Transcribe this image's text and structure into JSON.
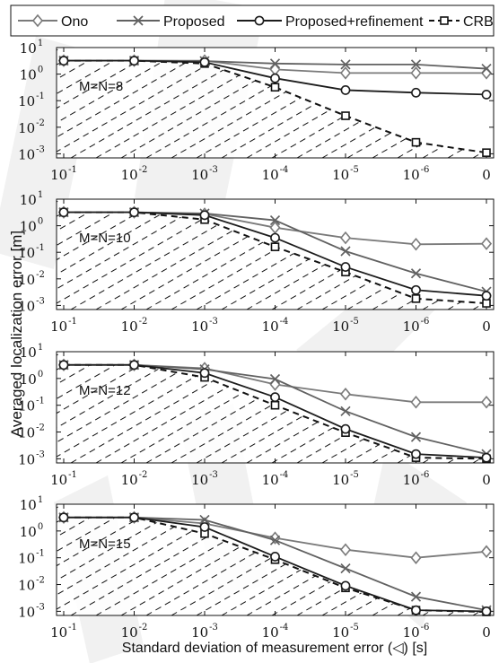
{
  "legend": {
    "position": "top",
    "entries": [
      {
        "series": "ono",
        "label": "Ono"
      },
      {
        "series": "proposed",
        "label": "Proposed"
      },
      {
        "series": "refine",
        "label": "Proposed+refinement"
      },
      {
        "series": "crb",
        "label": "CRB"
      }
    ]
  },
  "figure": {
    "ylabel": "Averaged localization error [m]",
    "xlabel": "Standard deviation of measurement error (◁) [s]"
  },
  "colors": {
    "ono": "#7a7a7a",
    "proposed": "#616161",
    "refine": "#1c1c1c",
    "crb": "#111111",
    "watermark": "#e6e6e6",
    "hatch": "#111111"
  },
  "chart_data": [
    {
      "type": "line",
      "annotation": "M=N=8",
      "yscale": "log",
      "ylim": [
        0.0007,
        10
      ],
      "grid": false,
      "categories": [
        "10^-1",
        "10^-2",
        "10^-3",
        "10^-4",
        "10^-5",
        "10^-6",
        "0"
      ],
      "series": [
        {
          "name": "Ono",
          "marker": "diamond",
          "values": [
            3.2,
            3.2,
            3.2,
            1.5,
            1.1,
            1.1,
            1.1
          ]
        },
        {
          "name": "Proposed",
          "marker": "x",
          "values": [
            3.2,
            3.2,
            3.1,
            2.5,
            2.3,
            2.3,
            1.6
          ]
        },
        {
          "name": "Proposed+refinement",
          "marker": "circle",
          "values": [
            3.2,
            3.2,
            2.8,
            0.7,
            0.25,
            0.2,
            0.17
          ]
        },
        {
          "name": "CRB",
          "marker": "square",
          "dashed": true,
          "values": [
            3.2,
            3.2,
            2.5,
            0.32,
            0.027,
            0.0027,
            0.0011
          ]
        }
      ]
    },
    {
      "type": "line",
      "annotation": "M=N=10",
      "yscale": "log",
      "ylim": [
        0.0007,
        10
      ],
      "grid": false,
      "categories": [
        "10^-1",
        "10^-2",
        "10^-3",
        "10^-4",
        "10^-5",
        "10^-6",
        "0"
      ],
      "series": [
        {
          "name": "Ono",
          "marker": "diamond",
          "values": [
            3.2,
            3.2,
            2.8,
            0.85,
            0.35,
            0.2,
            0.21
          ]
        },
        {
          "name": "Proposed",
          "marker": "x",
          "values": [
            3.2,
            3.2,
            2.9,
            1.6,
            0.11,
            0.016,
            0.0033
          ]
        },
        {
          "name": "Proposed+refinement",
          "marker": "circle",
          "values": [
            3.2,
            3.2,
            2.5,
            0.35,
            0.028,
            0.0038,
            0.0023
          ]
        },
        {
          "name": "CRB",
          "marker": "square",
          "dashed": true,
          "values": [
            3.2,
            3.2,
            1.7,
            0.16,
            0.018,
            0.0018,
            0.0012
          ]
        }
      ]
    },
    {
      "type": "line",
      "annotation": "M=N=12",
      "yscale": "log",
      "ylim": [
        0.0007,
        10
      ],
      "grid": false,
      "categories": [
        "10^-1",
        "10^-2",
        "10^-3",
        "10^-4",
        "10^-5",
        "10^-6",
        "0"
      ],
      "series": [
        {
          "name": "Ono",
          "marker": "diamond",
          "values": [
            3.2,
            3.2,
            2.4,
            0.6,
            0.26,
            0.13,
            0.13
          ]
        },
        {
          "name": "Proposed",
          "marker": "x",
          "values": [
            3.2,
            3.2,
            2.2,
            0.95,
            0.06,
            0.0065,
            0.0015
          ]
        },
        {
          "name": "Proposed+refinement",
          "marker": "circle",
          "values": [
            3.2,
            3.2,
            1.6,
            0.2,
            0.013,
            0.0015,
            0.0011
          ]
        },
        {
          "name": "CRB",
          "marker": "square",
          "dashed": true,
          "values": [
            3.2,
            3.2,
            1.1,
            0.1,
            0.0095,
            0.0011,
            0.001
          ]
        }
      ]
    },
    {
      "type": "line",
      "annotation": "M=N=15",
      "yscale": "log",
      "ylim": [
        0.0007,
        10
      ],
      "grid": false,
      "categories": [
        "10^-1",
        "10^-2",
        "10^-3",
        "10^-4",
        "10^-5",
        "10^-6",
        "0"
      ],
      "series": [
        {
          "name": "Ono",
          "marker": "diamond",
          "values": [
            3.2,
            3.2,
            1.9,
            0.55,
            0.2,
            0.1,
            0.17
          ]
        },
        {
          "name": "Proposed",
          "marker": "x",
          "values": [
            3.2,
            3.2,
            2.6,
            0.45,
            0.04,
            0.0035,
            0.0011
          ]
        },
        {
          "name": "Proposed+refinement",
          "marker": "circle",
          "values": [
            3.2,
            3.2,
            1.4,
            0.11,
            0.009,
            0.0011,
            0.001
          ]
        },
        {
          "name": "CRB",
          "marker": "square",
          "dashed": true,
          "values": [
            3.2,
            3.2,
            0.8,
            0.085,
            0.0075,
            0.0011,
            0.00095
          ]
        }
      ]
    }
  ]
}
